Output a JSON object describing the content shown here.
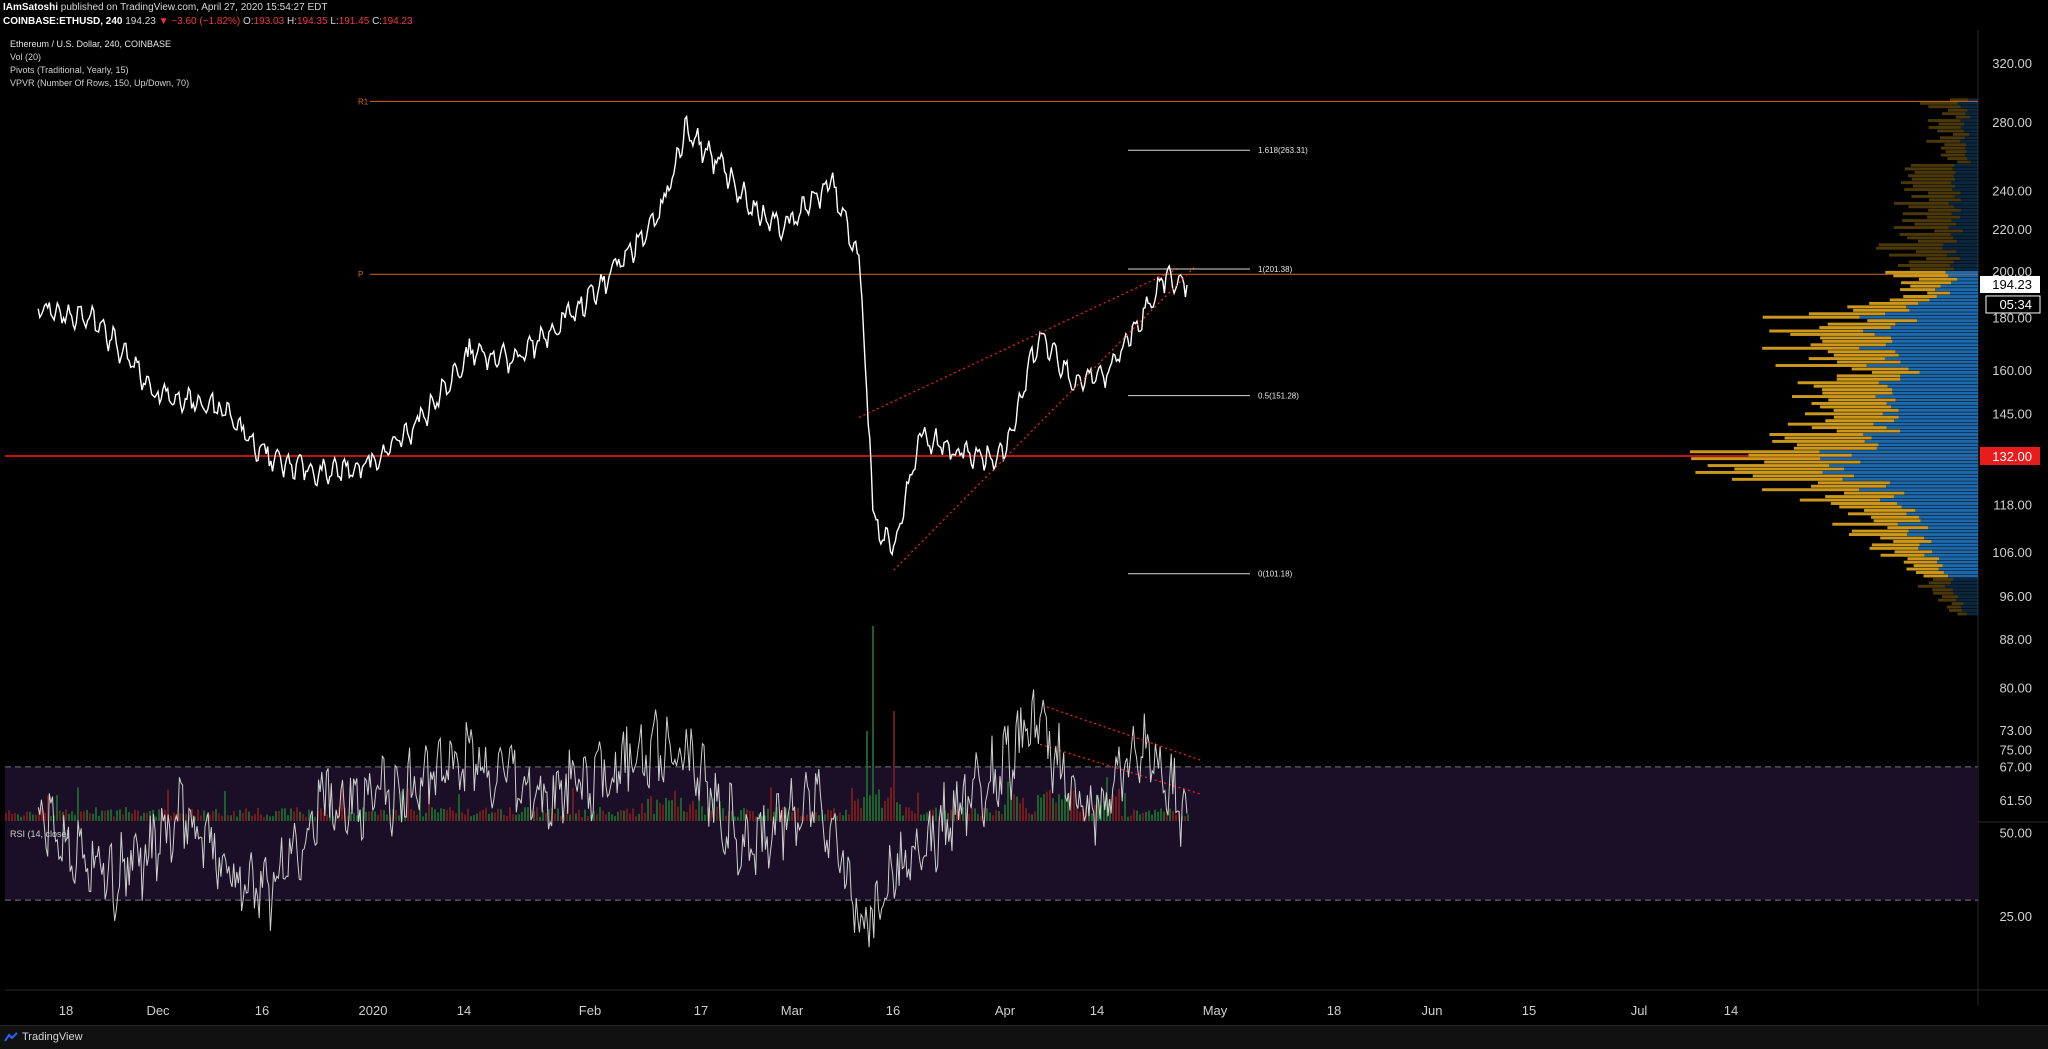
{
  "header": {
    "author": "IAmSatoshi",
    "published": "published on TradingView.com, April 27, 2020 15:54:27 EDT",
    "symbol": "COINBASE:ETHUSD, 240",
    "last": "194.23",
    "change": "▼ −3.60 (−1.82%)",
    "o_label": "O:",
    "o_val": "193.03",
    "h_label": "H:",
    "h_val": "194.35",
    "l_label": "L:",
    "l_val": "191.45",
    "c_label": "C:",
    "c_val": "194.23"
  },
  "legend": {
    "title": "Ethereum / U.S. Dollar, 240, COINBASE",
    "vol": "Vol (20)",
    "pivots": "Pivots (Traditional, Yearly, 15)",
    "vpvr": "VPVR (Number Of Rows, 150, Up/Down, 70)"
  },
  "rsi_label": "RSI (14, close)",
  "footer": {
    "brand": "TradingView",
    "logo_icon": "tradingview-logo-icon"
  },
  "colors": {
    "price": "#ffffff",
    "pivot": "#d2691e",
    "hline": "#ff1a1a",
    "vp_up": "#1f6fb5",
    "vp_down": "#d6a01e",
    "rsi_band": "#1a0f26"
  },
  "chart_data": [
    {
      "type": "line",
      "title": "Ethereum / U.S. Dollar, 240, COINBASE",
      "x_ticks": [
        "18",
        "Dec",
        "16",
        "2020",
        "14",
        "Feb",
        "17",
        "Mar",
        "16",
        "Apr",
        "14",
        "May",
        "18",
        "Jun",
        "15",
        "Jul",
        "14"
      ],
      "y_ticks": [
        "320.00",
        "280.00",
        "240.00",
        "220.00",
        "200.00",
        "180.00",
        "160.00",
        "145.00",
        "132.00",
        "118.00",
        "106.00",
        "96.00",
        "88.00",
        "80.00",
        "73.00",
        "67.00",
        "61.50"
      ],
      "y_scale": "log",
      "series": [
        {
          "x": [
            "Nov 14",
            "Nov 22",
            "Dec 1",
            "Dec 10",
            "Dec 17",
            "Dec 25",
            "Jan 1",
            "Jan 8",
            "Jan 15",
            "Jan 22",
            "Jan 29",
            "Feb 5",
            "Feb 12",
            "Feb 15",
            "Feb 20",
            "Feb 26",
            "Mar 1",
            "Mar 7",
            "Mar 11",
            "Mar 13",
            "Mar 16",
            "Mar 20",
            "Mar 26",
            "Apr 1",
            "Apr 6",
            "Apr 11",
            "Apr 16",
            "Apr 21",
            "Apr 24",
            "Apr 27"
          ],
          "values": [
            184,
            180,
            152,
            148,
            131,
            127,
            130,
            143,
            166,
            164,
            180,
            200,
            232,
            275,
            255,
            225,
            222,
            245,
            205,
            115,
            106,
            138,
            132,
            132,
            174,
            155,
            160,
            183,
            199,
            194.23
          ]
        }
      ],
      "last_price": "194.23",
      "countdown": "05:34",
      "horizontal_line": "132.00",
      "pivots": [
        {
          "label": "R1",
          "value": 294
        },
        {
          "label": "P",
          "value": 199
        }
      ],
      "fib_levels": [
        {
          "label": "1.618(263.31)",
          "value": 263.31
        },
        {
          "label": "1(201.38)",
          "value": 201.38
        },
        {
          "label": "0.5(151.28)",
          "value": 151.28
        },
        {
          "label": "0(101.18)",
          "value": 101.18
        }
      ],
      "rising_wedge": {
        "upper": [
          [
            "Mar 11",
            144
          ],
          [
            "Apr 26",
            202
          ]
        ],
        "lower": [
          [
            "Mar 16",
            102
          ],
          [
            "Apr 28",
            202
          ]
        ]
      },
      "volume_divergence": [
        [
          "Apr 6",
          72
        ],
        [
          "Apr 29",
          63
        ]
      ]
    },
    {
      "type": "line",
      "title": "RSI (14, close)",
      "y_ticks": [
        "75.00",
        "50.00",
        "25.00"
      ],
      "band": [
        30,
        70
      ],
      "series": [
        {
          "x": [
            "Nov 14",
            "Nov 25",
            "Dec 5",
            "Dec 16",
            "Dec 25",
            "Jan 5",
            "Jan 15",
            "Jan 25",
            "Feb 5",
            "Feb 14",
            "Feb 24",
            "Mar 5",
            "Mar 12",
            "Mar 17",
            "Mar 26",
            "Apr 6",
            "Apr 13",
            "Apr 20",
            "Apr 27"
          ],
          "values": [
            55,
            35,
            55,
            30,
            60,
            62,
            72,
            60,
            68,
            78,
            45,
            62,
            22,
            42,
            58,
            82,
            55,
            75,
            56
          ]
        }
      ],
      "divergence": [
        [
          "Apr 7",
          88
        ],
        [
          "Apr 29",
          72
        ]
      ]
    }
  ]
}
